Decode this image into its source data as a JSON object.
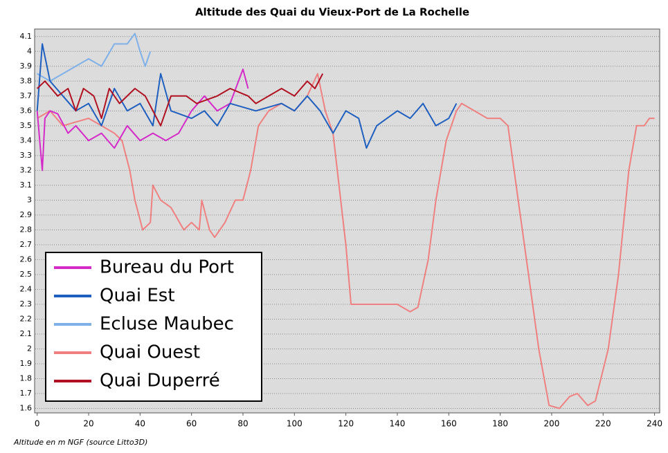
{
  "chart_data": {
    "type": "line",
    "title": "Altitude des Quai du Vieux-Port de La Rochelle",
    "annotation": "Altitude en m NGF (source Litto3D)",
    "xlim": [
      -1,
      242
    ],
    "ylim": [
      1.57,
      4.15
    ],
    "xticks": [
      0,
      20,
      40,
      60,
      80,
      100,
      120,
      140,
      160,
      180,
      200,
      220,
      240
    ],
    "yticks": [
      1.6,
      1.7,
      1.8,
      1.9,
      2,
      2.1,
      2.2,
      2.3,
      2.4,
      2.5,
      2.6,
      2.7,
      2.8,
      2.9,
      3,
      3.1,
      3.2,
      3.3,
      3.4,
      3.5,
      3.6,
      3.7,
      3.8,
      3.9,
      4,
      4.1
    ],
    "grid": true,
    "legend": "lower left",
    "series": [
      {
        "name": "Bureau du Port",
        "color": "#d42ac8",
        "x": [
          0,
          2,
          3,
          5,
          8,
          12,
          15,
          20,
          25,
          30,
          35,
          40,
          45,
          50,
          55,
          60,
          65,
          70,
          75,
          80,
          82
        ],
        "values": [
          3.6,
          3.2,
          3.55,
          3.6,
          3.58,
          3.45,
          3.5,
          3.4,
          3.45,
          3.35,
          3.5,
          3.4,
          3.45,
          3.4,
          3.45,
          3.6,
          3.7,
          3.6,
          3.65,
          3.88,
          3.75
        ]
      },
      {
        "name": "Quai Est",
        "color": "#1f5fbf",
        "x": [
          0,
          2,
          5,
          10,
          15,
          20,
          25,
          30,
          35,
          40,
          45,
          48,
          52,
          60,
          65,
          70,
          75,
          85,
          95,
          100,
          105,
          110,
          115,
          120,
          125,
          128,
          132,
          140,
          145,
          150,
          155,
          160,
          163
        ],
        "values": [
          3.6,
          4.05,
          3.8,
          3.7,
          3.6,
          3.65,
          3.5,
          3.75,
          3.6,
          3.65,
          3.5,
          3.85,
          3.6,
          3.55,
          3.6,
          3.5,
          3.65,
          3.6,
          3.65,
          3.6,
          3.7,
          3.6,
          3.45,
          3.6,
          3.55,
          3.35,
          3.5,
          3.6,
          3.55,
          3.65,
          3.5,
          3.55,
          3.65
        ]
      },
      {
        "name": "Ecluse Maubec",
        "color": "#7fb0e8",
        "x": [
          0,
          5,
          10,
          15,
          20,
          25,
          30,
          35,
          38,
          40,
          42,
          44
        ],
        "values": [
          3.85,
          3.8,
          3.85,
          3.9,
          3.95,
          3.9,
          4.05,
          4.05,
          4.12,
          4,
          3.9,
          4
        ]
      },
      {
        "name": "Quai Ouest",
        "color": "#f08080",
        "x": [
          0,
          5,
          10,
          20,
          25,
          30,
          33,
          36,
          38,
          41,
          44,
          45,
          48,
          52,
          57,
          60,
          63,
          64,
          67,
          69,
          73,
          77,
          80,
          83,
          86,
          90,
          95,
          100,
          105,
          109,
          112,
          115,
          118,
          120,
          122,
          130,
          135,
          140,
          145,
          148,
          152,
          155,
          159,
          163,
          165,
          170,
          175,
          180,
          183,
          187,
          191,
          195,
          199,
          203,
          207,
          210,
          214,
          217,
          222,
          226,
          230,
          233,
          236,
          238,
          240
        ],
        "values": [
          3.55,
          3.6,
          3.5,
          3.55,
          3.5,
          3.45,
          3.4,
          3.2,
          3,
          2.8,
          2.85,
          3.1,
          3,
          2.95,
          2.8,
          2.85,
          2.8,
          3,
          2.8,
          2.75,
          2.85,
          3,
          3,
          3.2,
          3.5,
          3.6,
          3.65,
          3.6,
          3.7,
          3.85,
          3.6,
          3.45,
          3,
          2.7,
          2.3,
          2.3,
          2.3,
          2.3,
          2.25,
          2.28,
          2.6,
          3,
          3.4,
          3.6,
          3.65,
          3.6,
          3.55,
          3.55,
          3.5,
          3,
          2.5,
          2,
          1.62,
          1.6,
          1.68,
          1.7,
          1.62,
          1.65,
          2,
          2.5,
          3.2,
          3.5,
          3.5,
          3.55,
          3.55
        ]
      },
      {
        "name": "Quai Duperré",
        "color": "#b01020",
        "x": [
          0,
          3,
          8,
          12,
          15,
          18,
          22,
          25,
          28,
          32,
          38,
          42,
          48,
          52,
          58,
          62,
          70,
          75,
          82,
          85,
          90,
          95,
          100,
          105,
          108,
          111
        ],
        "values": [
          3.75,
          3.8,
          3.7,
          3.75,
          3.6,
          3.75,
          3.7,
          3.55,
          3.75,
          3.65,
          3.75,
          3.7,
          3.5,
          3.7,
          3.7,
          3.65,
          3.7,
          3.75,
          3.7,
          3.65,
          3.7,
          3.75,
          3.7,
          3.8,
          3.75,
          3.85
        ]
      }
    ]
  }
}
